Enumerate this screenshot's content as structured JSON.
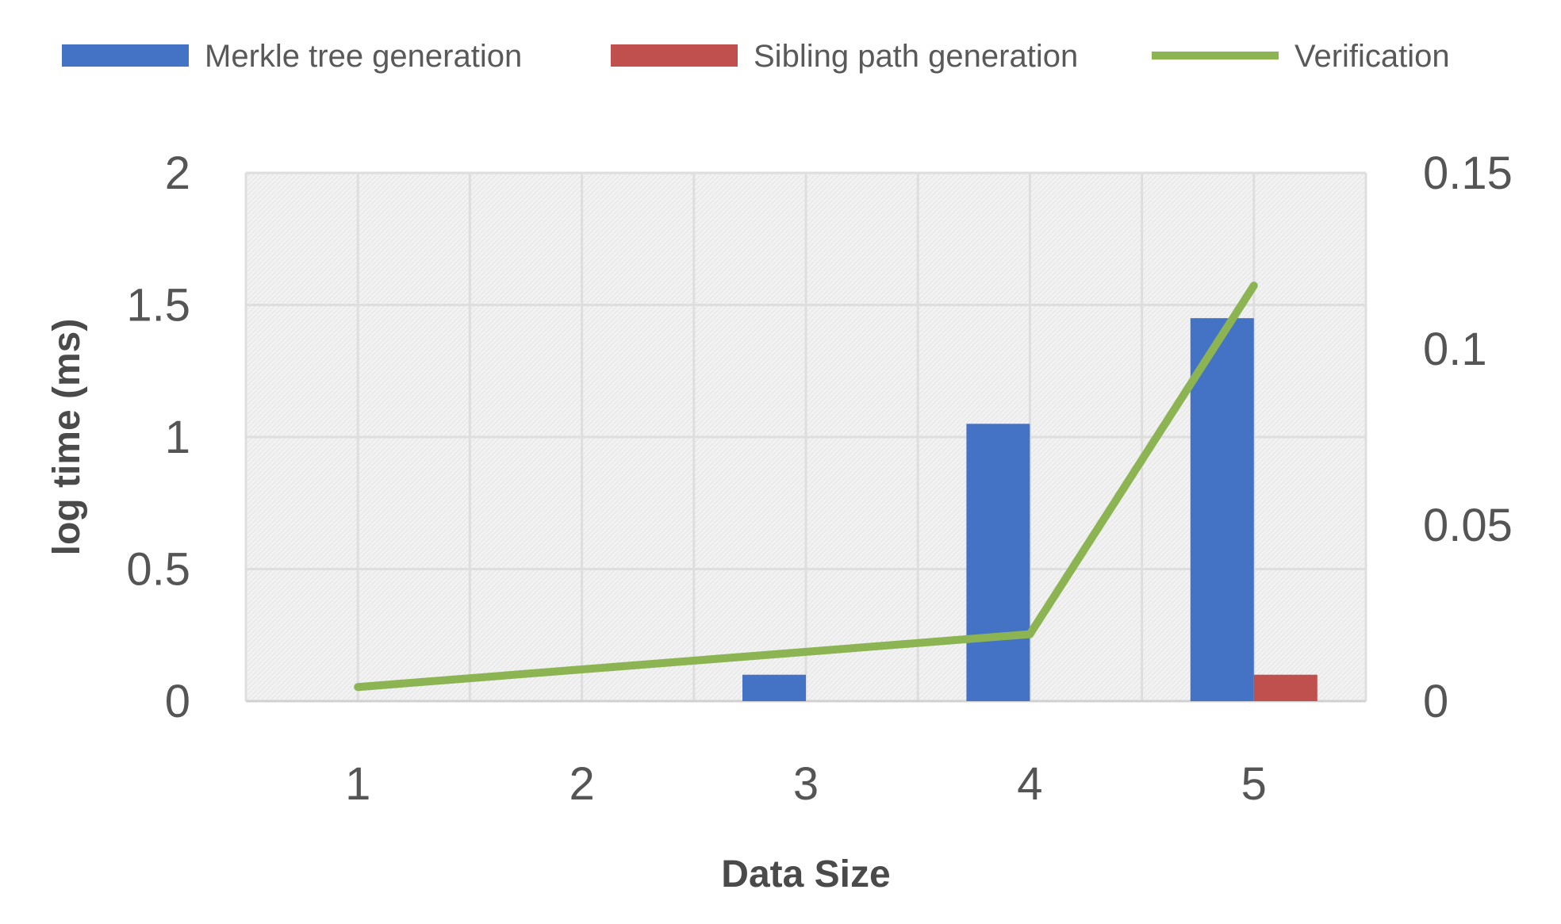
{
  "chart_data": {
    "type": "bar",
    "categories": [
      "1",
      "2",
      "3",
      "4",
      "5"
    ],
    "xlabel": "Data Size",
    "ylabel": "log time (ms)",
    "ylim": [
      0,
      2
    ],
    "y2lim": [
      0,
      0.15
    ],
    "yticks": [
      "0",
      "0.5",
      "1",
      "1.5",
      "2"
    ],
    "y2ticks": [
      "0",
      "0.05",
      "0.1",
      "0.15"
    ],
    "grid": true,
    "legend_position": "top",
    "series": [
      {
        "name": "Merkle tree generation",
        "type": "bar",
        "axis": "left",
        "color": "#4472c4",
        "values": [
          0,
          0,
          0.1,
          1.05,
          1.45
        ]
      },
      {
        "name": "Sibling path generation",
        "type": "bar",
        "axis": "left",
        "color": "#c0504d",
        "values": [
          0,
          0,
          0,
          0,
          0.1
        ]
      },
      {
        "name": "Verification",
        "type": "line",
        "axis": "right",
        "color": "#8cb453",
        "values": [
          0.004,
          0.009,
          0.014,
          0.019,
          0.118
        ]
      }
    ]
  }
}
